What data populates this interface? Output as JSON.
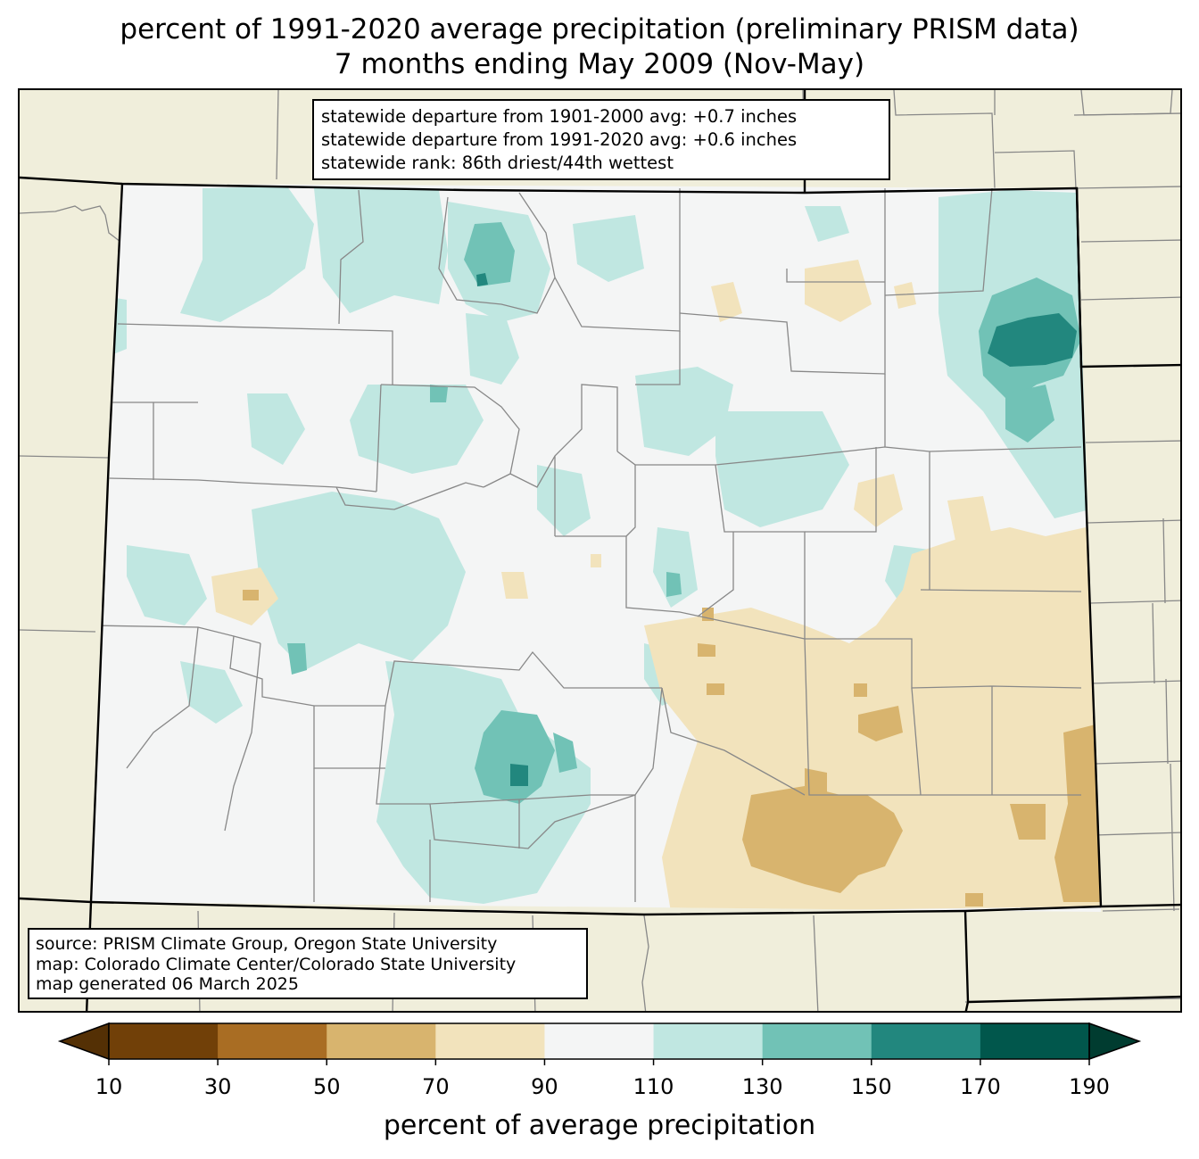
{
  "title": {
    "line1": "percent of 1991-2020 average precipitation (preliminary PRISM data)",
    "line2": "7 months ending May 2009 (Nov-May)"
  },
  "stats": {
    "line1": "statewide departure from 1901-2000 avg: +0.7 inches",
    "line2": "statewide departure from 1991-2020 avg: +0.6 inches",
    "line3": "statewide rank: 86th driest/44th wettest"
  },
  "source": {
    "line1": "source: PRISM Climate Group, Oregon State University",
    "line2": "map: Colorado Climate Center/Colorado State University",
    "line3": "map generated 06 March 2025"
  },
  "colorbar": {
    "label": "percent of average precipitation",
    "ticks": [
      "10",
      "30",
      "50",
      "70",
      "90",
      "110",
      "130",
      "150",
      "170",
      "190"
    ],
    "under_color": "#543005",
    "over_color": "#003c30",
    "bins": [
      {
        "range": "10-30",
        "color": "#714008"
      },
      {
        "range": "30-50",
        "color": "#a96d23"
      },
      {
        "range": "50-70",
        "color": "#d8b46e"
      },
      {
        "range": "70-90",
        "color": "#f2e3bc"
      },
      {
        "range": "90-110",
        "color": "#f4f5f5"
      },
      {
        "range": "110-130",
        "color": "#c0e7e1"
      },
      {
        "range": "130-150",
        "color": "#71c2b6"
      },
      {
        "range": "150-170",
        "color": "#22877e"
      },
      {
        "range": "170-190",
        "color": "#01574c"
      }
    ]
  },
  "map_colors": {
    "background": "#f0eedb",
    "normal": "#f4f5f5",
    "county_line": "#888888",
    "state_line": "#000000"
  }
}
